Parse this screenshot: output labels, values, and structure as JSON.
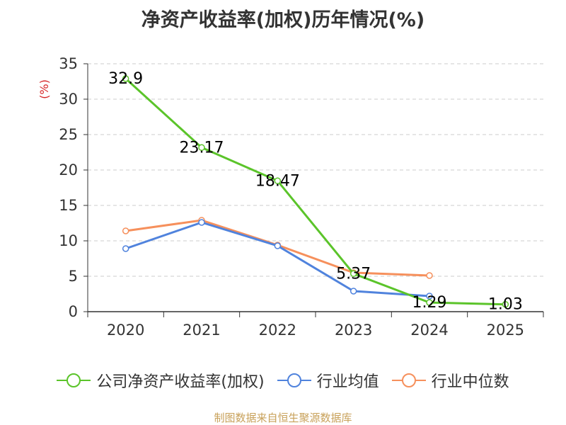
{
  "chart_data": {
    "type": "line",
    "title": "净资产收益率(加权)历年情况(%)",
    "ylabel": "(%)",
    "xlabel": "",
    "categories": [
      "2020",
      "2021",
      "2022",
      "2023",
      "2024",
      "2025"
    ],
    "ylim": [
      0,
      35
    ],
    "yticks": [
      0,
      5,
      10,
      15,
      20,
      25,
      30,
      35
    ],
    "grid": true,
    "legend_position": "bottom",
    "series": [
      {
        "name": "公司净资产收益率(加权)",
        "color": "#5bc42a",
        "values": [
          32.9,
          23.17,
          18.47,
          5.37,
          1.29,
          1.03
        ],
        "labels": [
          "32.9",
          "23.17",
          "18.47",
          "5.37",
          "1.29",
          "1.03"
        ]
      },
      {
        "name": "行业均值",
        "color": "#5083dd",
        "values": [
          8.9,
          12.6,
          9.3,
          2.9,
          2.2,
          null
        ]
      },
      {
        "name": "行业中位数",
        "color": "#f6905c",
        "values": [
          11.4,
          12.9,
          9.4,
          5.5,
          5.1,
          null
        ]
      }
    ]
  },
  "source_note": "制图数据来自恒生聚源数据库"
}
